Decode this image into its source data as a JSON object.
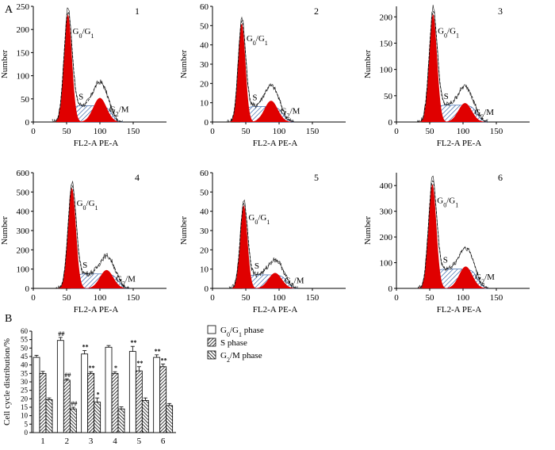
{
  "panel_labels": {
    "a": "A",
    "b": "B"
  },
  "colors": {
    "g0": "#e00000",
    "s_hatch": "#1c4f9c",
    "ink": "#000000",
    "bar_open": "#ffffff",
    "bar_hatch": "#000000"
  },
  "chart_data": [
    {
      "type": "histogram",
      "panel": "1",
      "xlabel": "FL2-A PE-A",
      "ylabel": "Number",
      "xlim": [
        0,
        200
      ],
      "ylim": [
        0,
        250
      ],
      "xticks": [
        "0",
        "50",
        "100",
        "150"
      ],
      "yticks": [
        "0",
        "50",
        "100",
        "150",
        "200",
        "250"
      ],
      "g0_center": 52,
      "g0_peak": 232,
      "g0_sd": 6,
      "g2_center": 100,
      "g2_peak": 52,
      "g2_sd": 10,
      "s_level": 35,
      "labels": {
        "g0": "G0/G1",
        "s": "S",
        "g2": "G2/M"
      }
    },
    {
      "type": "histogram",
      "panel": "2",
      "xlabel": "FL2-A PE-A",
      "ylabel": "Number",
      "xlim": [
        0,
        200
      ],
      "ylim": [
        0,
        60
      ],
      "xticks": [
        "0",
        "50",
        "100",
        "150"
      ],
      "yticks": [
        "0",
        "10",
        "20",
        "30",
        "40",
        "50",
        "60"
      ],
      "g0_center": 44,
      "g0_peak": 51,
      "g0_sd": 5.5,
      "g2_center": 88,
      "g2_peak": 11,
      "g2_sd": 10,
      "s_level": 8,
      "labels": {
        "g0": "G0/G1",
        "s": "S",
        "g2": "G2/M"
      }
    },
    {
      "type": "histogram",
      "panel": "3",
      "xlabel": "FL2-A PE-A",
      "ylabel": "Number",
      "xlim": [
        0,
        200
      ],
      "ylim": [
        0,
        220
      ],
      "xticks": [
        "0",
        "50",
        "100",
        "150"
      ],
      "yticks": [
        "0",
        "50",
        "100",
        "150",
        "200"
      ],
      "g0_center": 55,
      "g0_peak": 205,
      "g0_sd": 6,
      "g2_center": 103,
      "g2_peak": 36,
      "g2_sd": 10,
      "s_level": 32,
      "labels": {
        "g0": "G0/G1",
        "s": "S",
        "g2": "G2/M"
      }
    },
    {
      "type": "histogram",
      "panel": "4",
      "xlabel": "FL2-A PE-A",
      "ylabel": "Number",
      "xlim": [
        0,
        200
      ],
      "ylim": [
        0,
        600
      ],
      "xticks": [
        "0",
        "50",
        "100",
        "150"
      ],
      "yticks": [
        "0",
        "100",
        "200",
        "300",
        "400",
        "500",
        "600"
      ],
      "g0_center": 58,
      "g0_peak": 520,
      "g0_sd": 6,
      "g2_center": 110,
      "g2_peak": 95,
      "g2_sd": 10,
      "s_level": 75,
      "labels": {
        "g0": "G0/G1",
        "s": "S",
        "g2": "G2/M"
      }
    },
    {
      "type": "histogram",
      "panel": "5",
      "xlabel": "FL2-A PE-A",
      "ylabel": "Number",
      "xlim": [
        0,
        200
      ],
      "ylim": [
        0,
        60
      ],
      "xticks": [
        "0",
        "50",
        "100",
        "150"
      ],
      "yticks": [
        "0",
        "10",
        "20",
        "30",
        "40",
        "50",
        "60"
      ],
      "g0_center": 47,
      "g0_peak": 43,
      "g0_sd": 5.5,
      "g2_center": 94,
      "g2_peak": 8,
      "g2_sd": 10,
      "s_level": 7,
      "labels": {
        "g0": "G0/G1",
        "s": "S",
        "g2": "G2/M"
      }
    },
    {
      "type": "histogram",
      "panel": "6",
      "xlabel": "FL2-A PE-A",
      "ylabel": "Number",
      "xlim": [
        0,
        200
      ],
      "ylim": [
        0,
        450
      ],
      "xticks": [
        "0",
        "50",
        "100",
        "150"
      ],
      "yticks": [
        "0",
        "100",
        "200",
        "300",
        "400"
      ],
      "g0_center": 54,
      "g0_peak": 405,
      "g0_sd": 6,
      "g2_center": 104,
      "g2_peak": 85,
      "g2_sd": 10,
      "s_level": 75,
      "labels": {
        "g0": "G0/G1",
        "s": "S",
        "g2": "G2/M"
      }
    },
    {
      "type": "bar",
      "panel": "B",
      "ylabel": "Cell cycle distribution/%",
      "ylim": [
        0,
        60
      ],
      "yticks": [
        "0",
        "5",
        "10",
        "15",
        "20",
        "25",
        "30",
        "35",
        "40",
        "45",
        "50",
        "55",
        "60"
      ],
      "categories": [
        "1",
        "2",
        "3",
        "4",
        "5",
        "6"
      ],
      "series": [
        {
          "name": "G0/G1 phase",
          "values": [
            44.5,
            54.5,
            46.5,
            50.5,
            48.0,
            44.5
          ],
          "errors": [
            1.2,
            1.8,
            2.0,
            1.0,
            3.0,
            1.5
          ],
          "annotations": [
            "",
            "##",
            "**",
            "",
            "**",
            "**"
          ]
        },
        {
          "name": "S phase",
          "values": [
            35.0,
            31.0,
            35.0,
            35.0,
            36.5,
            39.0
          ],
          "errors": [
            1.2,
            0.8,
            1.0,
            1.0,
            2.5,
            1.5
          ],
          "annotations": [
            "",
            "##",
            "**",
            "*",
            "**",
            "**"
          ]
        },
        {
          "name": "G2/M phase",
          "values": [
            19.5,
            14.0,
            18.0,
            14.0,
            19.0,
            16.0
          ],
          "errors": [
            1.0,
            1.0,
            2.5,
            1.2,
            1.5,
            1.2
          ],
          "annotations": [
            "",
            "##",
            "*",
            "",
            "",
            ""
          ]
        }
      ],
      "legend": [
        {
          "main": "G",
          "sub": "0",
          "mid": "/G",
          "sub2": "1",
          "rest": " phase"
        },
        {
          "main": "S phase",
          "sub": "",
          "mid": "",
          "sub2": "",
          "rest": ""
        },
        {
          "main": "G",
          "sub": "2",
          "mid": "/M",
          "sub2": "",
          "rest": " phase"
        }
      ]
    }
  ]
}
